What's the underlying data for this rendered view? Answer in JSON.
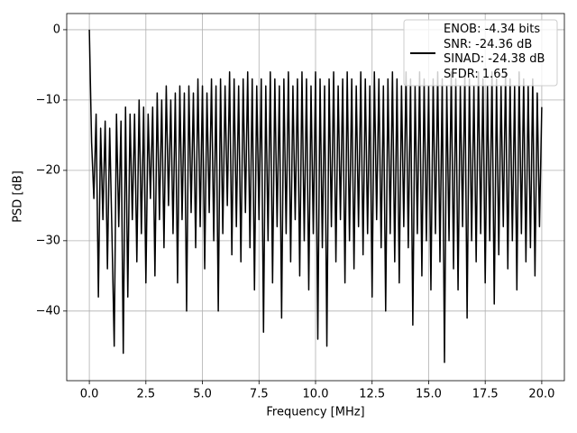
{
  "chart_data": {
    "type": "line",
    "xlabel": "Frequency [MHz]",
    "ylabel": "PSD [dB]",
    "xlim": [
      -1,
      21
    ],
    "ylim": [
      -49.9,
      2.3
    ],
    "xticks": [
      {
        "value": 0,
        "label": "0.0"
      },
      2.5,
      {
        "value": 5,
        "label": "5.0"
      },
      7.5,
      {
        "value": 10,
        "label": "10.0"
      },
      12.5,
      {
        "value": 15,
        "label": "15.0"
      },
      17.5,
      {
        "value": 20,
        "label": "20.0"
      }
    ],
    "yticks": [
      {
        "value": -40,
        "label": "−40"
      },
      {
        "value": -30,
        "label": "−30"
      },
      {
        "value": -20,
        "label": "−20"
      },
      {
        "value": -10,
        "label": "−10"
      },
      0
    ],
    "grid": true,
    "legend": "upper right",
    "x": [
      0,
      0.1,
      0.2,
      0.3,
      0.4,
      0.5,
      0.6,
      0.7,
      0.8,
      0.9,
      1,
      1.1,
      1.2,
      1.3,
      1.4,
      1.5,
      1.6,
      1.7,
      1.8,
      1.9,
      2,
      2.1,
      2.2,
      2.3,
      2.4,
      2.5,
      2.6,
      2.7,
      2.8,
      2.9,
      3,
      3.1,
      3.2,
      3.3,
      3.4,
      3.5,
      3.6,
      3.7,
      3.8,
      3.9,
      4,
      4.1,
      4.2,
      4.3,
      4.4,
      4.5,
      4.6,
      4.7,
      4.8,
      4.9,
      5,
      5.1,
      5.2,
      5.3,
      5.4,
      5.5,
      5.6,
      5.7,
      5.8,
      5.9,
      6,
      6.1,
      6.2,
      6.3,
      6.4,
      6.5,
      6.6,
      6.7,
      6.8,
      6.9,
      7,
      7.1,
      7.2,
      7.3,
      7.4,
      7.5,
      7.6,
      7.7,
      7.8,
      7.9,
      8,
      8.1,
      8.2,
      8.3,
      8.4,
      8.5,
      8.6,
      8.7,
      8.8,
      8.9,
      9,
      9.1,
      9.2,
      9.3,
      9.4,
      9.5,
      9.6,
      9.7,
      9.8,
      9.9,
      10,
      10.1,
      10.2,
      10.3,
      10.4,
      10.5,
      10.6,
      10.7,
      10.8,
      10.9,
      11,
      11.1,
      11.2,
      11.3,
      11.4,
      11.5,
      11.6,
      11.7,
      11.8,
      11.9,
      12,
      12.1,
      12.2,
      12.3,
      12.4,
      12.5,
      12.6,
      12.7,
      12.8,
      12.9,
      13,
      13.1,
      13.2,
      13.3,
      13.4,
      13.5,
      13.6,
      13.7,
      13.8,
      13.9,
      14,
      14.1,
      14.2,
      14.3,
      14.4,
      14.5,
      14.6,
      14.7,
      14.8,
      14.9,
      15,
      15.1,
      15.2,
      15.3,
      15.4,
      15.5,
      15.6,
      15.7,
      15.8,
      15.9,
      16,
      16.1,
      16.2,
      16.3,
      16.4,
      16.5,
      16.6,
      16.7,
      16.8,
      16.9,
      17,
      17.1,
      17.2,
      17.3,
      17.4,
      17.5,
      17.6,
      17.7,
      17.8,
      17.9,
      18,
      18.1,
      18.2,
      18.3,
      18.4,
      18.5,
      18.6,
      18.7,
      18.8,
      18.9,
      19,
      19.1,
      19.2,
      19.3,
      19.4,
      19.5,
      19.6,
      19.7,
      19.8,
      19.9,
      20
    ],
    "series": [
      {
        "name": "ENOB: -4.34 bits\nSNR: -24.36 dB\nSINAD: -24.38 dB\nSFDR: 1.65",
        "color": "#000000",
        "values": [
          0,
          -16,
          -24,
          -12,
          -38,
          -14,
          -27,
          -13,
          -34,
          -14,
          -29,
          -45,
          -12,
          -28,
          -13,
          -46,
          -11,
          -38,
          -12,
          -27,
          -12,
          -33,
          -10,
          -29,
          -11,
          -36,
          -12,
          -24,
          -11,
          -35,
          -9,
          -27,
          -10,
          -31,
          -8,
          -25,
          -10,
          -29,
          -9,
          -36,
          -8,
          -27,
          -9,
          -40,
          -8,
          -26,
          -9,
          -31,
          -7,
          -28,
          -8,
          -34,
          -9,
          -26,
          -7,
          -30,
          -8,
          -40,
          -7,
          -29,
          -8,
          -25,
          -6,
          -32,
          -7,
          -28,
          -8,
          -33,
          -7,
          -26,
          -6,
          -31,
          -7,
          -37,
          -8,
          -27,
          -7,
          -43,
          -8,
          -30,
          -6,
          -36,
          -7,
          -28,
          -8,
          -41,
          -7,
          -29,
          -6,
          -33,
          -8,
          -27,
          -7,
          -35,
          -6,
          -30,
          -7,
          -37,
          -8,
          -29,
          -6,
          -44,
          -7,
          -31,
          -8,
          -45,
          -7,
          -28,
          -6,
          -33,
          -8,
          -27,
          -7,
          -36,
          -6,
          -30,
          -7,
          -34,
          -8,
          -28,
          -6,
          -32,
          -7,
          -29,
          -8,
          -38,
          -6,
          -27,
          -7,
          -31,
          -8,
          -40,
          -7,
          -29,
          -6,
          -33,
          -7,
          -36,
          -8,
          -28,
          -6,
          -31,
          -7,
          -42,
          -8,
          -29,
          -6,
          -35,
          -7,
          -30,
          -8,
          -37,
          -7,
          -29,
          -6,
          -33,
          -7,
          -47.3,
          -8,
          -30,
          -6,
          -34,
          -7,
          -37,
          -8,
          -28,
          -6,
          -41,
          -7,
          -30,
          -8,
          -33,
          -6,
          -29,
          -7,
          -36,
          -8,
          -30,
          -6,
          -39,
          -7,
          -32,
          -8,
          -28,
          -6,
          -34,
          -7,
          -30,
          -8,
          -37,
          -6,
          -29,
          -7,
          -33,
          -8,
          -31,
          -7,
          -35,
          -9,
          -28,
          -11
        ]
      }
    ]
  }
}
